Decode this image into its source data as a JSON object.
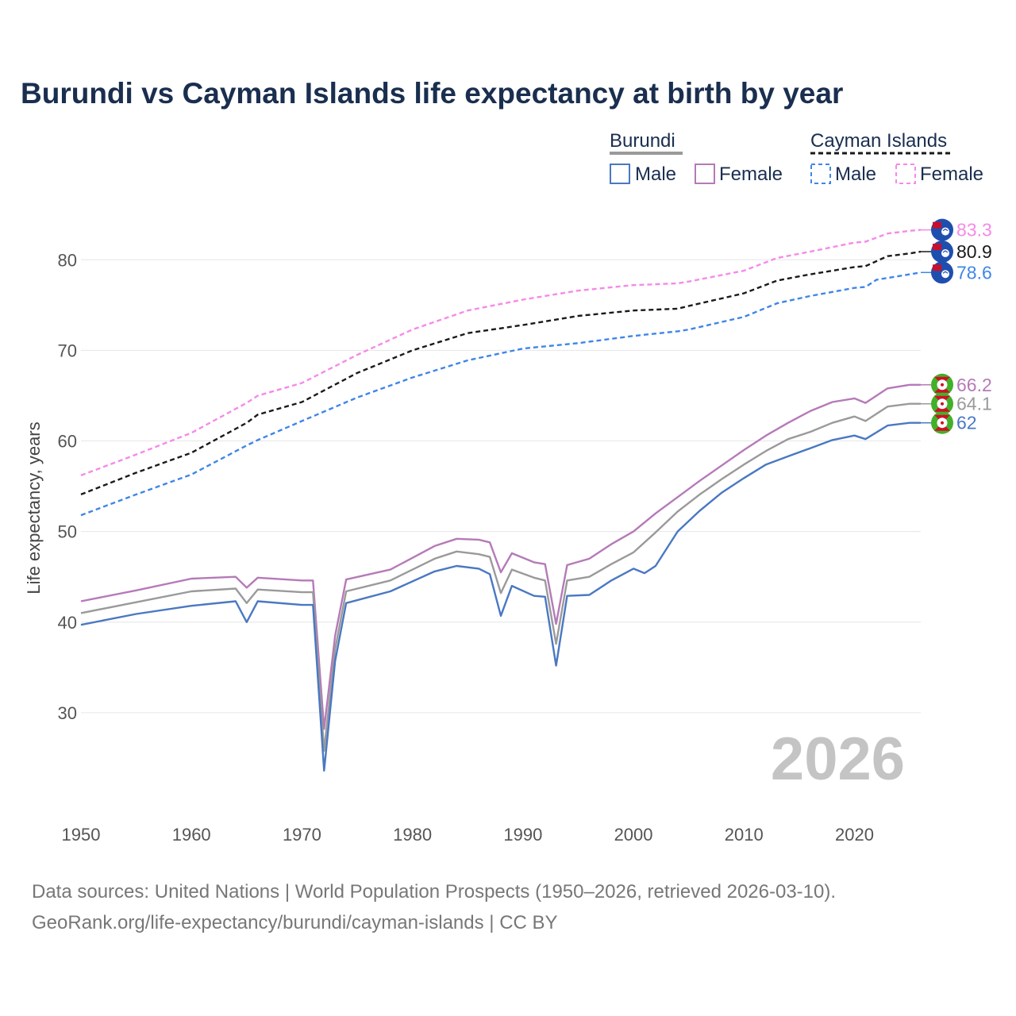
{
  "title": "Burundi vs Cayman Islands life expectancy at birth by year",
  "legend": {
    "groups": [
      {
        "name": "Burundi",
        "items": [
          "Male",
          "Female"
        ]
      },
      {
        "name": "Cayman Islands",
        "items": [
          "Male",
          "Female"
        ]
      }
    ]
  },
  "year_label": "2026",
  "source_lines": [
    "Data sources: United Nations | World Population Prospects (1950–2026, retrieved 2026-03-10).",
    "GeoRank.org/life-expectancy/burundi/cayman-islands | CC BY"
  ],
  "colors": {
    "burundi_male": "#4a78c2",
    "burundi_female": "#b57ab8",
    "burundi_total": "#9a9a9a",
    "cayman_male": "#3f86e8",
    "cayman_female": "#f58ae8",
    "cayman_total": "#1a1a1a",
    "grid": "#e6e6e6"
  },
  "chart_data": {
    "type": "line",
    "title": "Burundi vs Cayman Islands life expectancy at birth by year",
    "xlabel": "",
    "ylabel": "Life expectancy, years",
    "xlim": [
      1950,
      2026
    ],
    "ylim": [
      20,
      88
    ],
    "x_ticks": [
      1950,
      1960,
      1970,
      1980,
      1990,
      2000,
      2010,
      2020
    ],
    "y_ticks": [
      30,
      40,
      50,
      60,
      70,
      80
    ],
    "series": [
      {
        "name": "Cayman Islands Female",
        "country": "Cayman Islands",
        "sex": "Female",
        "style": "dashed",
        "color_key": "cayman_female",
        "end_label": "83.3",
        "points": [
          [
            1950,
            56.2
          ],
          [
            1955,
            58.5
          ],
          [
            1960,
            60.9
          ],
          [
            1965,
            64.2
          ],
          [
            1966,
            65.0
          ],
          [
            1970,
            66.4
          ],
          [
            1975,
            69.5
          ],
          [
            1980,
            72.3
          ],
          [
            1985,
            74.4
          ],
          [
            1990,
            75.6
          ],
          [
            1995,
            76.6
          ],
          [
            2000,
            77.2
          ],
          [
            2004,
            77.4
          ],
          [
            2005,
            77.6
          ],
          [
            2010,
            78.8
          ],
          [
            2013,
            80.2
          ],
          [
            2016,
            80.9
          ],
          [
            2020,
            81.9
          ],
          [
            2021,
            82.0
          ],
          [
            2023,
            82.9
          ],
          [
            2025,
            83.2
          ],
          [
            2026,
            83.3
          ]
        ]
      },
      {
        "name": "Cayman Islands Total",
        "country": "Cayman Islands",
        "sex": "Total",
        "style": "dashed",
        "color_key": "cayman_total",
        "end_label": "80.9",
        "points": [
          [
            1950,
            54.1
          ],
          [
            1955,
            56.5
          ],
          [
            1960,
            58.7
          ],
          [
            1965,
            62.0
          ],
          [
            1966,
            62.9
          ],
          [
            1970,
            64.3
          ],
          [
            1975,
            67.5
          ],
          [
            1980,
            70.0
          ],
          [
            1985,
            71.9
          ],
          [
            1990,
            72.8
          ],
          [
            1995,
            73.8
          ],
          [
            2000,
            74.4
          ],
          [
            2004,
            74.6
          ],
          [
            2005,
            74.9
          ],
          [
            2010,
            76.3
          ],
          [
            2013,
            77.7
          ],
          [
            2016,
            78.4
          ],
          [
            2020,
            79.2
          ],
          [
            2021,
            79.3
          ],
          [
            2023,
            80.4
          ],
          [
            2025,
            80.7
          ],
          [
            2026,
            80.9
          ]
        ]
      },
      {
        "name": "Cayman Islands Male",
        "country": "Cayman Islands",
        "sex": "Male",
        "style": "dashed",
        "color_key": "cayman_male",
        "end_label": "78.6",
        "points": [
          [
            1950,
            51.8
          ],
          [
            1955,
            54.1
          ],
          [
            1960,
            56.3
          ],
          [
            1965,
            59.5
          ],
          [
            1966,
            60.1
          ],
          [
            1970,
            62.2
          ],
          [
            1975,
            64.8
          ],
          [
            1980,
            67.0
          ],
          [
            1985,
            68.9
          ],
          [
            1990,
            70.2
          ],
          [
            1995,
            70.8
          ],
          [
            2000,
            71.6
          ],
          [
            2004,
            72.1
          ],
          [
            2005,
            72.3
          ],
          [
            2010,
            73.7
          ],
          [
            2013,
            75.2
          ],
          [
            2016,
            76.0
          ],
          [
            2020,
            76.9
          ],
          [
            2021,
            77.0
          ],
          [
            2022,
            77.8
          ],
          [
            2025,
            78.4
          ],
          [
            2026,
            78.6
          ]
        ]
      },
      {
        "name": "Burundi Female",
        "country": "Burundi",
        "sex": "Female",
        "style": "solid",
        "color_key": "burundi_female",
        "end_label": "66.2",
        "points": [
          [
            1950,
            42.3
          ],
          [
            1955,
            43.5
          ],
          [
            1960,
            44.8
          ],
          [
            1964,
            45.0
          ],
          [
            1965,
            43.8
          ],
          [
            1966,
            44.9
          ],
          [
            1970,
            44.6
          ],
          [
            1971,
            44.6
          ],
          [
            1972,
            28.2
          ],
          [
            1973,
            38.5
          ],
          [
            1974,
            44.7
          ],
          [
            1978,
            45.8
          ],
          [
            1982,
            48.4
          ],
          [
            1984,
            49.2
          ],
          [
            1986,
            49.1
          ],
          [
            1987,
            48.8
          ],
          [
            1988,
            45.5
          ],
          [
            1989,
            47.6
          ],
          [
            1991,
            46.6
          ],
          [
            1992,
            46.4
          ],
          [
            1993,
            39.8
          ],
          [
            1994,
            46.3
          ],
          [
            1996,
            47.0
          ],
          [
            1998,
            48.6
          ],
          [
            2000,
            50.0
          ],
          [
            2002,
            52.0
          ],
          [
            2004,
            53.8
          ],
          [
            2006,
            55.6
          ],
          [
            2008,
            57.3
          ],
          [
            2010,
            59.0
          ],
          [
            2012,
            60.6
          ],
          [
            2014,
            62.0
          ],
          [
            2016,
            63.3
          ],
          [
            2018,
            64.3
          ],
          [
            2020,
            64.7
          ],
          [
            2021,
            64.2
          ],
          [
            2023,
            65.8
          ],
          [
            2025,
            66.2
          ],
          [
            2026,
            66.2
          ]
        ]
      },
      {
        "name": "Burundi Total",
        "country": "Burundi",
        "sex": "Total",
        "style": "solid",
        "color_key": "burundi_total",
        "end_label": "64.1",
        "points": [
          [
            1950,
            41.0
          ],
          [
            1955,
            42.2
          ],
          [
            1960,
            43.4
          ],
          [
            1964,
            43.7
          ],
          [
            1965,
            42.1
          ],
          [
            1966,
            43.6
          ],
          [
            1970,
            43.3
          ],
          [
            1971,
            43.3
          ],
          [
            1972,
            25.8
          ],
          [
            1973,
            37.0
          ],
          [
            1974,
            43.4
          ],
          [
            1978,
            44.6
          ],
          [
            1982,
            47.0
          ],
          [
            1984,
            47.8
          ],
          [
            1986,
            47.5
          ],
          [
            1987,
            47.2
          ],
          [
            1988,
            43.2
          ],
          [
            1989,
            45.8
          ],
          [
            1991,
            44.9
          ],
          [
            1992,
            44.6
          ],
          [
            1993,
            37.6
          ],
          [
            1994,
            44.6
          ],
          [
            1996,
            45.0
          ],
          [
            1998,
            46.4
          ],
          [
            2000,
            47.7
          ],
          [
            2002,
            49.9
          ],
          [
            2004,
            52.2
          ],
          [
            2006,
            54.1
          ],
          [
            2008,
            55.8
          ],
          [
            2010,
            57.4
          ],
          [
            2012,
            58.9
          ],
          [
            2014,
            60.2
          ],
          [
            2016,
            61.0
          ],
          [
            2018,
            62.0
          ],
          [
            2020,
            62.7
          ],
          [
            2021,
            62.2
          ],
          [
            2023,
            63.8
          ],
          [
            2025,
            64.1
          ],
          [
            2026,
            64.1
          ]
        ]
      },
      {
        "name": "Burundi Male",
        "country": "Burundi",
        "sex": "Male",
        "style": "solid",
        "color_key": "burundi_male",
        "end_label": "62",
        "points": [
          [
            1950,
            39.7
          ],
          [
            1955,
            40.9
          ],
          [
            1960,
            41.8
          ],
          [
            1964,
            42.3
          ],
          [
            1965,
            40.0
          ],
          [
            1966,
            42.3
          ],
          [
            1970,
            41.9
          ],
          [
            1971,
            41.9
          ],
          [
            1972,
            23.6
          ],
          [
            1973,
            35.7
          ],
          [
            1974,
            42.1
          ],
          [
            1978,
            43.4
          ],
          [
            1982,
            45.6
          ],
          [
            1984,
            46.2
          ],
          [
            1986,
            45.9
          ],
          [
            1987,
            45.3
          ],
          [
            1988,
            40.7
          ],
          [
            1989,
            44.0
          ],
          [
            1991,
            42.9
          ],
          [
            1992,
            42.8
          ],
          [
            1993,
            35.2
          ],
          [
            1994,
            42.9
          ],
          [
            1996,
            43.0
          ],
          [
            1998,
            44.6
          ],
          [
            2000,
            45.9
          ],
          [
            2001,
            45.4
          ],
          [
            2002,
            46.2
          ],
          [
            2004,
            50.0
          ],
          [
            2006,
            52.3
          ],
          [
            2008,
            54.3
          ],
          [
            2010,
            55.9
          ],
          [
            2012,
            57.4
          ],
          [
            2014,
            58.3
          ],
          [
            2016,
            59.2
          ],
          [
            2018,
            60.1
          ],
          [
            2020,
            60.6
          ],
          [
            2021,
            60.2
          ],
          [
            2023,
            61.7
          ],
          [
            2025,
            62.0
          ],
          [
            2026,
            62.0
          ]
        ]
      }
    ]
  }
}
